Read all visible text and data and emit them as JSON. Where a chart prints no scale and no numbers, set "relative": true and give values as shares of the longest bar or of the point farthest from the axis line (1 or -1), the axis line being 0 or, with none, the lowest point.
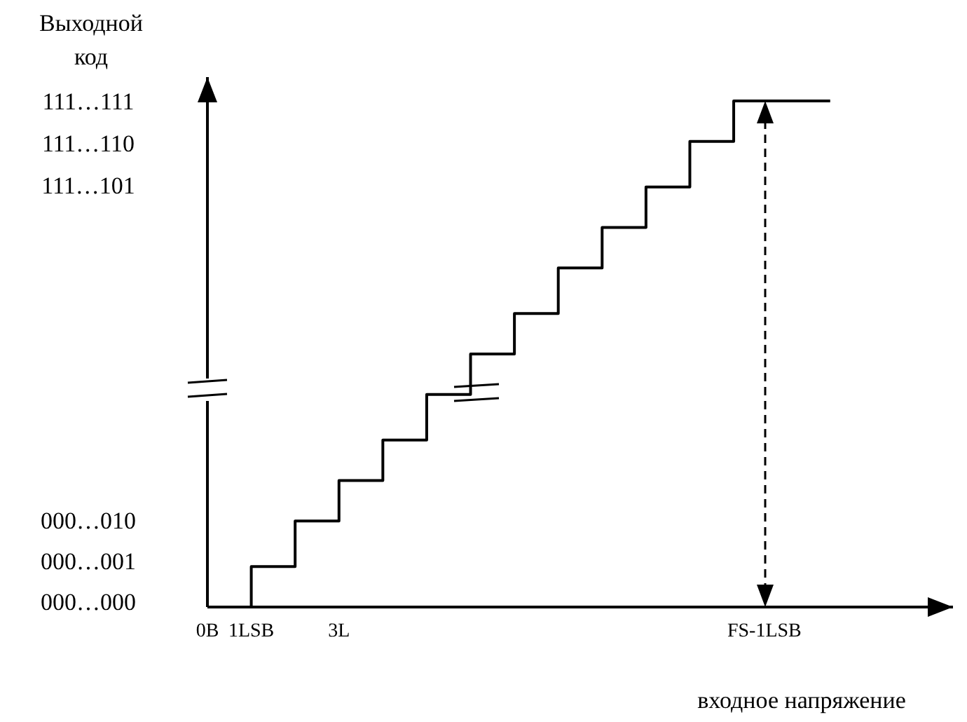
{
  "chart_data": {
    "type": "step",
    "xlabel": "входное напряжение",
    "ylabel": "Выходной код",
    "relative": true,
    "xlim": [
      0,
      17
    ],
    "xticks": [
      {
        "value": 0,
        "label": "0B"
      },
      {
        "value": 1,
        "label": "1LSB"
      },
      {
        "value": 3,
        "label": "3L"
      },
      {
        "value": 12.7,
        "label": "FS-1LSB"
      }
    ],
    "annotations": [
      "111…111",
      "111…110",
      "111…101",
      "000…010",
      "000…001",
      "000…000"
    ],
    "series": [
      {
        "color": "#000000",
        "x": [
          1,
          1,
          2,
          3,
          4,
          5,
          6,
          7,
          8,
          9,
          10,
          11,
          12,
          14.2
        ],
        "values": [
          0,
          0.08,
          0.17,
          0.25,
          0.33,
          0.42,
          0.5,
          0.58,
          0.67,
          0.75,
          0.83,
          0.92,
          1,
          1
        ]
      }
    ]
  }
}
